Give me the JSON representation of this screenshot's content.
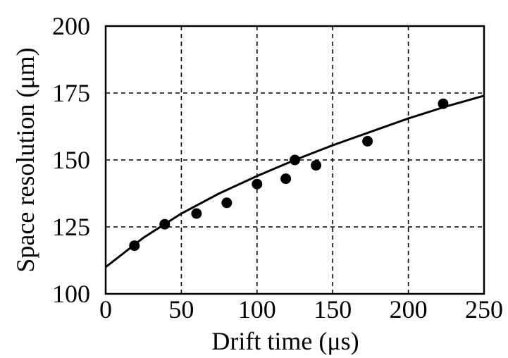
{
  "chart_data": {
    "type": "scatter",
    "title": "",
    "xlabel": "Drift time (μs)",
    "ylabel": "Space resolution (μm)",
    "xlim": [
      0,
      250
    ],
    "ylim": [
      100,
      200
    ],
    "xticks": [
      0,
      50,
      100,
      150,
      200,
      250
    ],
    "yticks": [
      100,
      125,
      150,
      175,
      200
    ],
    "xtick_labels": [
      "0",
      "50",
      "100",
      "150",
      "200",
      "250"
    ],
    "ytick_labels": [
      "100",
      "125",
      "150",
      "175",
      "200"
    ],
    "grid": true,
    "legend": "none",
    "series": [
      {
        "kind": "points",
        "x": [
          19,
          39,
          60,
          80,
          100,
          119,
          125,
          139,
          173,
          223
        ],
        "y": [
          118,
          126,
          130,
          134,
          141,
          143,
          150,
          148,
          157,
          171
        ]
      },
      {
        "kind": "fit-curve",
        "x": [
          0,
          25,
          50,
          75,
          100,
          125,
          150,
          175,
          200,
          225,
          250
        ],
        "y": [
          110,
          121,
          130,
          137.5,
          144,
          150,
          155.5,
          160.5,
          165.5,
          170,
          174
        ]
      }
    ]
  }
}
